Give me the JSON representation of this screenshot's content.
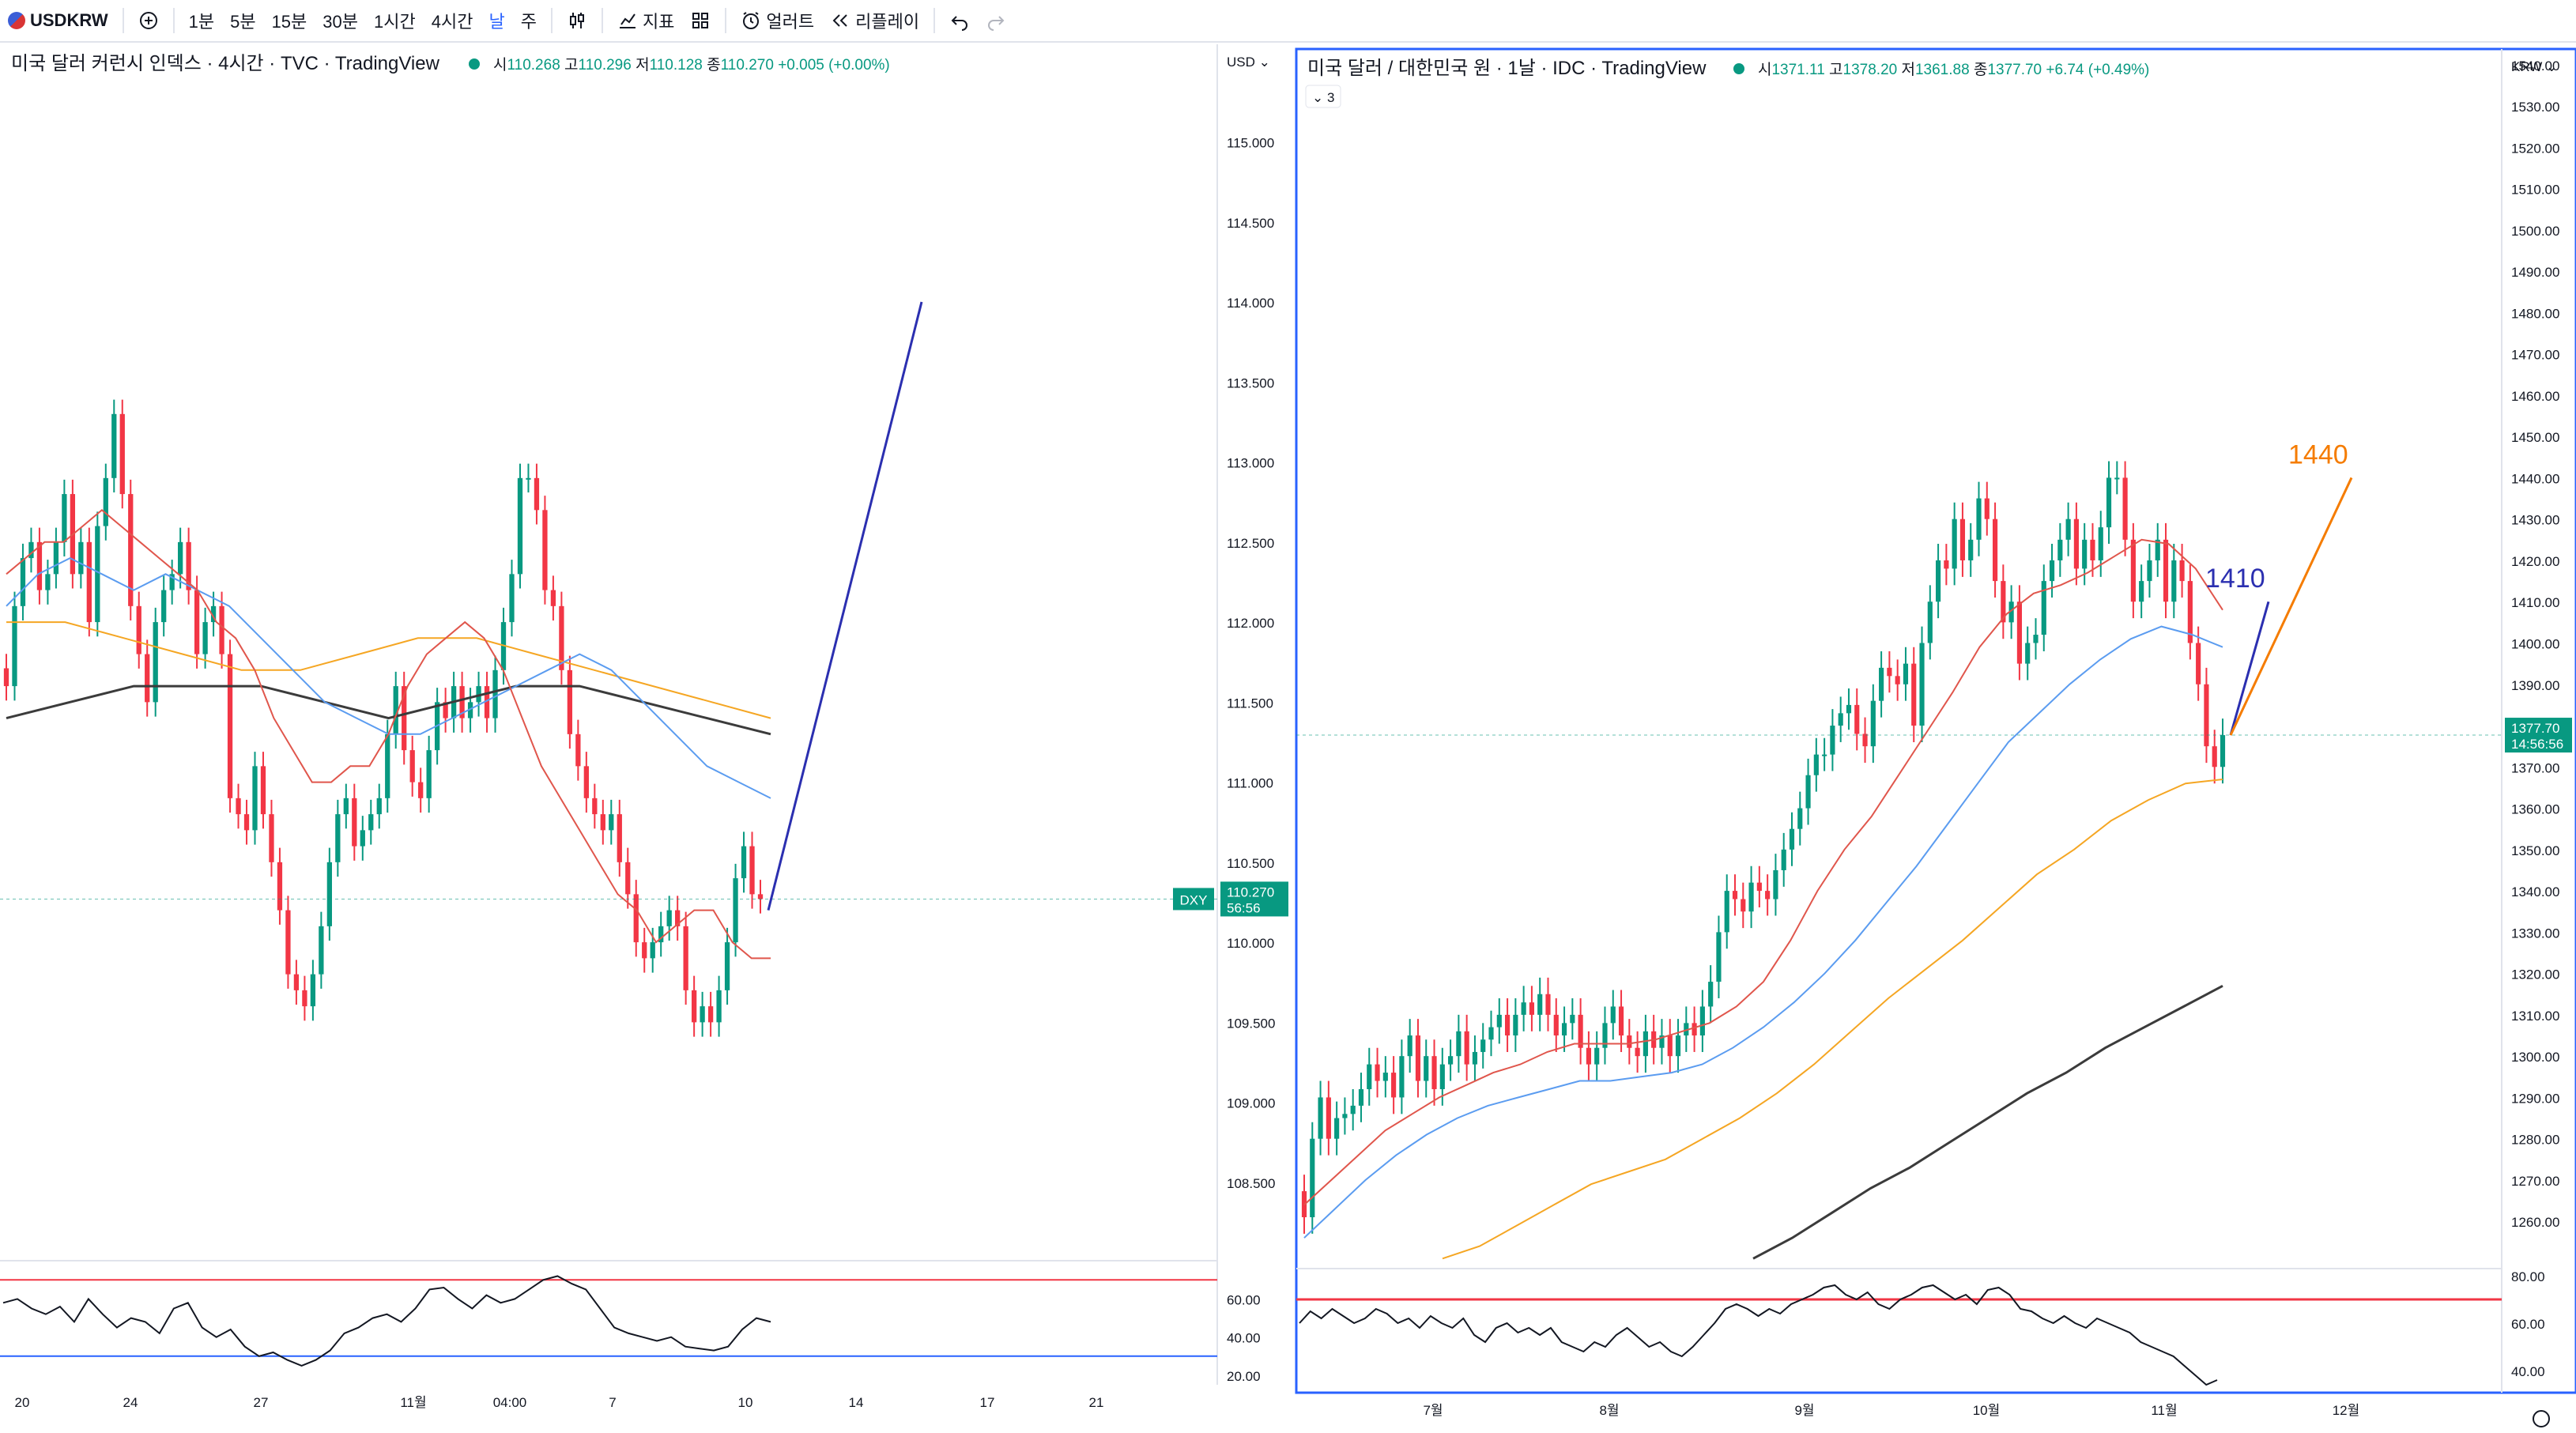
{
  "toolbar": {
    "symbol": "USDKRW",
    "intervals": [
      "1분",
      "5분",
      "15분",
      "30분",
      "1시간",
      "4시간",
      "날",
      "주"
    ],
    "active_interval": "날",
    "indicators_label": "지표",
    "alert_label": "얼러트",
    "replay_label": "리플레이"
  },
  "colors": {
    "up": "#089981",
    "down": "#f23645",
    "ma_short": "#e0564c",
    "ma_mid": "#5b9cf0",
    "ma_long": "#f5a623",
    "ma_200": "#3b3b3b",
    "draw_blue": "#2b2fb0",
    "draw_orange": "#f57c00",
    "rsi_line": "#131722"
  },
  "chart_data": [
    {
      "type": "candlestick",
      "title": "미국 달러 커런시 인덱스 · 4시간 · TVC · TradingView",
      "ohlc": {
        "o_label": "시",
        "o": "110.268",
        "h_label": "고",
        "h": "110.296",
        "l_label": "저",
        "l": "110.128",
        "c_label": "종",
        "c": "110.270",
        "change": "+0.005 (+0.00%)"
      },
      "currency": "USD",
      "y_ticks": [
        "115.000",
        "114.500",
        "114.000",
        "113.500",
        "113.000",
        "112.500",
        "112.000",
        "111.500",
        "111.000",
        "110.500",
        "110.000",
        "109.500",
        "109.000",
        "108.500"
      ],
      "ylim": [
        108.06,
        115.61
      ],
      "x_ticks": [
        "20",
        "24",
        "27",
        "11월",
        "04:00",
        "7",
        "10",
        "14",
        "17",
        "21"
      ],
      "price_badge": {
        "symbol": "DXY",
        "value": "110.270",
        "countdown": "56:56"
      },
      "last_price": 110.27,
      "closes": [
        111.6,
        112.1,
        112.4,
        112.5,
        112.2,
        112.3,
        112.5,
        112.8,
        112.3,
        112.5,
        112.0,
        112.6,
        112.9,
        113.3,
        112.8,
        112.1,
        111.8,
        111.5,
        112.0,
        112.2,
        112.3,
        112.5,
        112.2,
        111.8,
        112.0,
        112.1,
        111.8,
        110.9,
        110.8,
        110.7,
        111.1,
        110.8,
        110.5,
        110.2,
        109.8,
        109.7,
        109.6,
        109.8,
        110.1,
        110.5,
        110.8,
        110.9,
        110.6,
        110.7,
        110.8,
        110.9,
        111.3,
        111.6,
        111.2,
        111.0,
        110.9,
        111.2,
        111.5,
        111.4,
        111.6,
        111.4,
        111.5,
        111.6,
        111.4,
        111.7,
        112.0,
        112.3,
        112.9,
        112.9,
        112.7,
        112.2,
        112.1,
        111.7,
        111.3,
        111.1,
        110.9,
        110.8,
        110.7,
        110.8,
        110.5,
        110.3,
        110.0,
        109.9,
        110.0,
        110.1,
        110.2,
        110.1,
        109.7,
        109.5,
        109.6,
        109.5,
        109.7,
        110.0,
        110.4,
        110.6,
        110.3,
        110.27
      ],
      "ma_short": [
        112.3,
        112.4,
        112.5,
        112.5,
        112.6,
        112.7,
        112.6,
        112.5,
        112.4,
        112.3,
        112.2,
        112.0,
        111.9,
        111.7,
        111.4,
        111.2,
        111.0,
        111.0,
        111.1,
        111.1,
        111.3,
        111.6,
        111.8,
        111.9,
        112.0,
        111.9,
        111.7,
        111.4,
        111.1,
        110.9,
        110.7,
        110.5,
        110.3,
        110.2,
        110.0,
        110.1,
        110.2,
        110.2,
        110.0,
        109.9,
        109.9
      ],
      "ma_mid": [
        112.1,
        112.3,
        112.4,
        112.3,
        112.2,
        112.3,
        112.2,
        112.1,
        111.9,
        111.7,
        111.5,
        111.4,
        111.3,
        111.3,
        111.4,
        111.5,
        111.6,
        111.7,
        111.8,
        111.7,
        111.5,
        111.3,
        111.1,
        111.0,
        110.9
      ],
      "ma_long": [
        112.0,
        112.0,
        111.9,
        111.8,
        111.7,
        111.7,
        111.8,
        111.9,
        111.9,
        111.8,
        111.7,
        111.6,
        111.5,
        111.4
      ],
      "ma_200": [
        111.4,
        111.5,
        111.6,
        111.6,
        111.6,
        111.5,
        111.4,
        111.5,
        111.6,
        111.6,
        111.5,
        111.4,
        111.3
      ],
      "rsi": {
        "levels": [
          70,
          30
        ],
        "ticks": [
          "60.00",
          "40.00",
          "20.00"
        ],
        "range": [
          15,
          78
        ],
        "values": [
          58,
          60,
          55,
          52,
          56,
          48,
          60,
          52,
          45,
          50,
          48,
          42,
          55,
          58,
          45,
          40,
          44,
          35,
          30,
          32,
          28,
          25,
          28,
          33,
          42,
          45,
          50,
          52,
          48,
          55,
          65,
          66,
          60,
          55,
          62,
          58,
          60,
          65,
          70,
          72,
          68,
          65,
          55,
          45,
          42,
          40,
          38,
          40,
          35,
          34,
          33,
          35,
          44,
          50,
          48
        ]
      },
      "drawing": {
        "from": 110.2,
        "to": 114.0
      }
    },
    {
      "type": "candlestick",
      "title": "미국 달러 / 대한민국 원 · 1날 · IDC · TradingView",
      "ohlc": {
        "o_label": "시",
        "o": "1371.11",
        "h_label": "고",
        "h": "1378.20",
        "l_label": "저",
        "l": "1361.88",
        "c_label": "종",
        "c": "1377.70",
        "change": "+6.74 (+0.49%)"
      },
      "indicator_count": "3",
      "currency": "KRW",
      "y_ticks": [
        "1540.00",
        "1530.00",
        "1520.00",
        "1510.00",
        "1500.00",
        "1490.00",
        "1480.00",
        "1470.00",
        "1460.00",
        "1450.00",
        "1440.00",
        "1430.00",
        "1420.00",
        "1410.00",
        "1400.00",
        "1390.00",
        "1380.00",
        "1370.00",
        "1360.00",
        "1350.00",
        "1340.00",
        "1330.00",
        "1320.00",
        "1310.00",
        "1300.00",
        "1290.00",
        "1280.00",
        "1270.00",
        "1260.00"
      ],
      "ylim": [
        1250.48,
        1543.78
      ],
      "x_ticks": [
        "7월",
        "8월",
        "9월",
        "10월",
        "11월",
        "12월"
      ],
      "price_badge": {
        "value": "1377.70",
        "countdown": "14:56:56"
      },
      "last_price": 1377.7,
      "closes": [
        1261,
        1280,
        1290,
        1280,
        1285,
        1286,
        1288,
        1292,
        1298,
        1294,
        1296,
        1290,
        1300,
        1305,
        1294,
        1300,
        1292,
        1298,
        1300,
        1306,
        1298,
        1301,
        1304,
        1307,
        1310,
        1305,
        1310,
        1313,
        1310,
        1315,
        1310,
        1305,
        1308,
        1310,
        1302,
        1298,
        1302,
        1308,
        1312,
        1305,
        1302,
        1300,
        1306,
        1302,
        1305,
        1300,
        1305,
        1308,
        1305,
        1312,
        1318,
        1330,
        1340,
        1338,
        1335,
        1342,
        1340,
        1338,
        1345,
        1350,
        1355,
        1360,
        1368,
        1373,
        1373,
        1380,
        1383,
        1385,
        1378,
        1375,
        1386,
        1394,
        1392,
        1390,
        1395,
        1380,
        1400,
        1410,
        1420,
        1418,
        1430,
        1420,
        1425,
        1435,
        1430,
        1415,
        1405,
        1410,
        1395,
        1400,
        1402,
        1415,
        1420,
        1425,
        1430,
        1418,
        1425,
        1420,
        1428,
        1440,
        1440,
        1425,
        1410,
        1415,
        1420,
        1425,
        1410,
        1420,
        1415,
        1400,
        1390,
        1375,
        1370,
        1377.7
      ],
      "ma_short": [
        1264,
        1270,
        1276,
        1282,
        1286,
        1290,
        1293,
        1296,
        1298,
        1301,
        1303,
        1303,
        1303,
        1304,
        1306,
        1308,
        1312,
        1318,
        1328,
        1340,
        1350,
        1358,
        1368,
        1378,
        1388,
        1399,
        1407,
        1412,
        1414,
        1417,
        1421,
        1425,
        1424,
        1418,
        1408
      ],
      "ma_mid": [
        1256,
        1263,
        1270,
        1276,
        1281,
        1285,
        1288,
        1290,
        1292,
        1294,
        1294,
        1295,
        1296,
        1298,
        1302,
        1307,
        1313,
        1320,
        1328,
        1337,
        1346,
        1356,
        1366,
        1376,
        1383,
        1390,
        1396,
        1401,
        1404,
        1402,
        1399
      ],
      "ma_long": [
        1251,
        1254,
        1259,
        1264,
        1269,
        1272,
        1275,
        1280,
        1285,
        1291,
        1298,
        1306,
        1314,
        1321,
        1328,
        1336,
        1344,
        1350,
        1357,
        1362,
        1366,
        1367
      ],
      "ma_200": [
        1251,
        1256,
        1262,
        1268,
        1273,
        1279,
        1285,
        1291,
        1296,
        1302,
        1307,
        1312,
        1317
      ],
      "rsi": {
        "levels": [
          70
        ],
        "ticks": [
          "80.00",
          "60.00",
          "40.00"
        ],
        "range": [
          33,
          83
        ],
        "values": [
          60,
          65,
          62,
          66,
          63,
          60,
          62,
          66,
          64,
          60,
          62,
          58,
          63,
          60,
          58,
          62,
          55,
          52,
          58,
          60,
          56,
          58,
          55,
          58,
          52,
          50,
          48,
          52,
          50,
          55,
          58,
          54,
          50,
          52,
          48,
          46,
          50,
          55,
          60,
          66,
          68,
          66,
          63,
          66,
          64,
          68,
          70,
          72,
          75,
          76,
          72,
          70,
          73,
          68,
          66,
          70,
          72,
          75,
          76,
          73,
          70,
          72,
          68,
          74,
          75,
          72,
          66,
          65,
          62,
          60,
          63,
          60,
          58,
          62,
          60,
          58,
          56,
          52,
          50,
          48,
          46,
          42,
          38,
          34,
          36
        ]
      },
      "drawings": [
        {
          "label": "1410",
          "from": 1377.7,
          "to": 1410
        },
        {
          "label": "1440",
          "from": 1377.7,
          "to": 1440
        }
      ]
    }
  ]
}
